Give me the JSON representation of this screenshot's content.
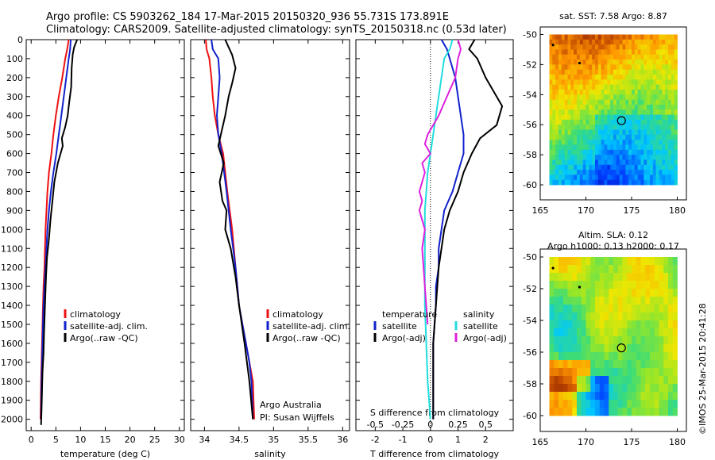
{
  "header": {
    "line1": "Argo profile: CS 5903262_184 17-Mar-2015 20150320_936 55.731S 173.891E",
    "line2": "Climatology: CARS2009. Satellite-adjusted climatology: synTS_20150318.nc (0.53d later)"
  },
  "footer": {
    "credit": "Argo Australia",
    "pi": "PI: Susan Wijffels",
    "stamp": "©IMOS 25-Mar-2015 20:41:28"
  },
  "colors": {
    "climatology": "#ee1111",
    "satellite": "#1122cc",
    "argo": "#000000",
    "sat_salinity": "#22dddd",
    "argo_salinity": "#dd22dd"
  },
  "chart_data": [
    {
      "type": "line",
      "id": "temperature",
      "xlabel": "temperature (deg C)",
      "xlim": [
        -1,
        31
      ],
      "xticks": [
        0,
        5,
        10,
        15,
        20,
        25,
        30
      ],
      "ylim": [
        2060,
        0
      ],
      "yticks": [
        0,
        100,
        200,
        300,
        400,
        500,
        600,
        700,
        800,
        900,
        1000,
        1100,
        1200,
        1300,
        1400,
        1500,
        1600,
        1700,
        1800,
        1900,
        2000
      ],
      "legend": [
        "climatology",
        "satellite-adj. clim.",
        "Argo(..raw -QC)"
      ],
      "series": [
        {
          "name": "climatology",
          "color": "#ee1111",
          "x": [
            7.6,
            7.3,
            6.9,
            6.3,
            5.6,
            5.0,
            4.5,
            4.1,
            3.6,
            3.3,
            3.1,
            2.9,
            2.8,
            2.7,
            2.5,
            2.4,
            2.3,
            2.2,
            2.1,
            2.0,
            1.9
          ],
          "y": [
            0,
            50,
            100,
            200,
            300,
            400,
            500,
            600,
            700,
            800,
            900,
            1000,
            1100,
            1200,
            1300,
            1400,
            1500,
            1600,
            1700,
            1800,
            2000
          ]
        },
        {
          "name": "satellite-adj. clim.",
          "color": "#1122cc",
          "x": [
            8.0,
            7.9,
            7.6,
            7.1,
            6.6,
            6.1,
            5.6,
            5.1,
            4.5,
            4.0,
            3.6,
            3.3,
            3.1,
            2.9,
            2.7,
            2.5,
            2.4,
            2.3,
            2.2,
            2.1,
            2.0
          ],
          "y": [
            0,
            50,
            100,
            200,
            300,
            400,
            500,
            600,
            700,
            800,
            900,
            1000,
            1100,
            1200,
            1300,
            1400,
            1500,
            1600,
            1700,
            1800,
            2000
          ]
        },
        {
          "name": "Argo(..raw -QC)",
          "color": "#000000",
          "x": [
            9.3,
            8.7,
            8.4,
            8.2,
            8.1,
            7.7,
            7.4,
            6.9,
            6.2,
            6.4,
            5.4,
            4.7,
            4.3,
            3.9,
            3.6,
            3.2,
            3.0,
            2.8,
            2.6,
            2.5,
            2.3,
            2.2,
            2.1,
            2.0
          ],
          "y": [
            0,
            40,
            80,
            150,
            250,
            330,
            400,
            460,
            520,
            560,
            650,
            750,
            850,
            950,
            1050,
            1150,
            1250,
            1400,
            1550,
            1650,
            1750,
            1850,
            1950,
            2030
          ]
        }
      ]
    },
    {
      "type": "line",
      "id": "salinity",
      "xlabel": "salinity",
      "xlim": [
        33.8,
        36.1
      ],
      "xticks": [
        34,
        34.5,
        35,
        35.5,
        36
      ],
      "ylim": [
        2060,
        0
      ],
      "legend": [
        "climatology",
        "satellite-adj. clim.",
        "Argo(..raw -QC)"
      ],
      "series": [
        {
          "name": "climatology",
          "color": "#ee1111",
          "x": [
            34.02,
            34.03,
            34.07,
            34.1,
            34.12,
            34.15,
            34.2,
            34.27,
            34.33,
            34.4,
            34.45,
            34.5,
            34.55,
            34.6,
            34.65,
            34.7,
            34.72
          ],
          "y": [
            0,
            50,
            100,
            200,
            300,
            400,
            500,
            600,
            800,
            1000,
            1200,
            1400,
            1500,
            1600,
            1700,
            1800,
            2000
          ]
        },
        {
          "name": "satellite-adj. clim.",
          "color": "#1122cc",
          "x": [
            34.1,
            34.12,
            34.2,
            34.22,
            34.2,
            34.18,
            34.2,
            34.25,
            34.32,
            34.38,
            34.45,
            34.5,
            34.55,
            34.6,
            34.65,
            34.68,
            34.7
          ],
          "y": [
            0,
            50,
            100,
            200,
            300,
            400,
            500,
            600,
            800,
            1000,
            1200,
            1400,
            1500,
            1600,
            1700,
            1800,
            2000
          ]
        },
        {
          "name": "Argo(..raw -QC)",
          "color": "#000000",
          "x": [
            34.3,
            34.35,
            34.4,
            34.45,
            34.4,
            34.35,
            34.3,
            34.25,
            34.2,
            34.28,
            34.22,
            34.26,
            34.32,
            34.3,
            34.38,
            34.45,
            34.5,
            34.58,
            34.65,
            34.7
          ],
          "y": [
            0,
            40,
            80,
            150,
            230,
            300,
            400,
            480,
            560,
            650,
            750,
            850,
            900,
            1000,
            1100,
            1250,
            1400,
            1600,
            1800,
            2000
          ]
        }
      ]
    },
    {
      "type": "line",
      "id": "differences",
      "xlabel": "T difference from climatology",
      "xlabel2": "S difference from climatology",
      "xlim": [
        -2.7,
        3.0
      ],
      "xticks": [
        -2,
        -1,
        0,
        1,
        2
      ],
      "xticklabels2": [
        "-0.5",
        "-0.25",
        "0",
        "0.25",
        "0.5"
      ],
      "ylim": [
        2060,
        0
      ],
      "legend_headers": [
        "temperature",
        "salinity"
      ],
      "legend": [
        "satellite",
        "Argo(-adj)",
        "satellite",
        "Argo(-adj)"
      ],
      "series": [
        {
          "name": "satellite",
          "color": "#1122cc",
          "x": [
            0.4,
            0.6,
            0.7,
            0.9,
            1.0,
            1.1,
            1.2,
            1.2,
            1.0,
            0.8,
            0.5,
            0.4,
            0.3,
            0.3,
            0.2,
            0.2,
            0.15,
            0.1,
            0.1,
            0.1,
            0.1
          ],
          "y": [
            0,
            50,
            100,
            200,
            300,
            400,
            500,
            600,
            700,
            800,
            900,
            1000,
            1100,
            1200,
            1300,
            1400,
            1500,
            1600,
            1700,
            1800,
            2000
          ]
        },
        {
          "name": "Argo(-adj)",
          "color": "#000000",
          "x": [
            1.6,
            1.4,
            1.7,
            2.0,
            2.6,
            2.4,
            1.8,
            1.5,
            1.2,
            1.0,
            0.7,
            0.5,
            0.4,
            0.3,
            0.25,
            0.2,
            0.15,
            0.1,
            0.1,
            0.1
          ],
          "y": [
            0,
            50,
            100,
            200,
            350,
            450,
            520,
            600,
            700,
            800,
            900,
            1000,
            1100,
            1200,
            1300,
            1400,
            1500,
            1600,
            1800,
            2000
          ]
        },
        {
          "name": "satellite",
          "color": "#22dddd",
          "x": [
            0.8,
            0.7,
            0.5,
            0.4,
            0.3,
            0.2,
            0.1,
            0.0,
            -0.1,
            -0.15,
            -0.2,
            -0.2,
            -0.2,
            -0.2,
            -0.15,
            -0.1,
            -0.05,
            0.0
          ],
          "y": [
            0,
            50,
            100,
            200,
            300,
            400,
            500,
            600,
            700,
            800,
            900,
            1000,
            1200,
            1400,
            1600,
            1800,
            1900,
            2000
          ]
        },
        {
          "name": "Argo(-adj)",
          "color": "#dd22dd",
          "x": [
            1.0,
            1.1,
            1.0,
            0.9,
            0.6,
            0.3,
            -0.1,
            -0.2,
            0.0,
            -0.3,
            -0.2,
            -0.4,
            -0.3,
            -0.4,
            -0.2,
            -0.3,
            -0.2,
            -0.1
          ],
          "y": [
            0,
            50,
            100,
            200,
            300,
            400,
            500,
            550,
            600,
            650,
            700,
            800,
            850,
            900,
            1000,
            1100,
            1300,
            1500
          ]
        }
      ]
    },
    {
      "type": "heatmap",
      "id": "sst_map",
      "title": "sat. SST: 7.58 Argo: 8.87",
      "xlim": [
        165,
        181
      ],
      "xticks": [
        165,
        170,
        175,
        180
      ],
      "ylim": [
        -61,
        -49.5
      ],
      "yticks": [
        -50,
        -52,
        -54,
        -56,
        -58,
        -60
      ],
      "argo_position": [
        173.891,
        -55.731
      ],
      "markers": [
        [
          166.4,
          -50.7
        ],
        [
          169.3,
          -51.9
        ]
      ]
    },
    {
      "type": "heatmap",
      "id": "sla_map",
      "title": "Altim. SLA: 0.12",
      "subtitle": "Argo h1000: 0.13 h2000: 0.17",
      "xlim": [
        165,
        181
      ],
      "xticks": [
        165,
        170,
        175,
        180
      ],
      "ylim": [
        -61,
        -49.5
      ],
      "yticks": [
        -50,
        -52,
        -54,
        -56,
        -58,
        -60
      ],
      "argo_position": [
        173.891,
        -55.731
      ],
      "markers": [
        [
          166.4,
          -50.7
        ],
        [
          169.3,
          -51.9
        ]
      ]
    }
  ]
}
